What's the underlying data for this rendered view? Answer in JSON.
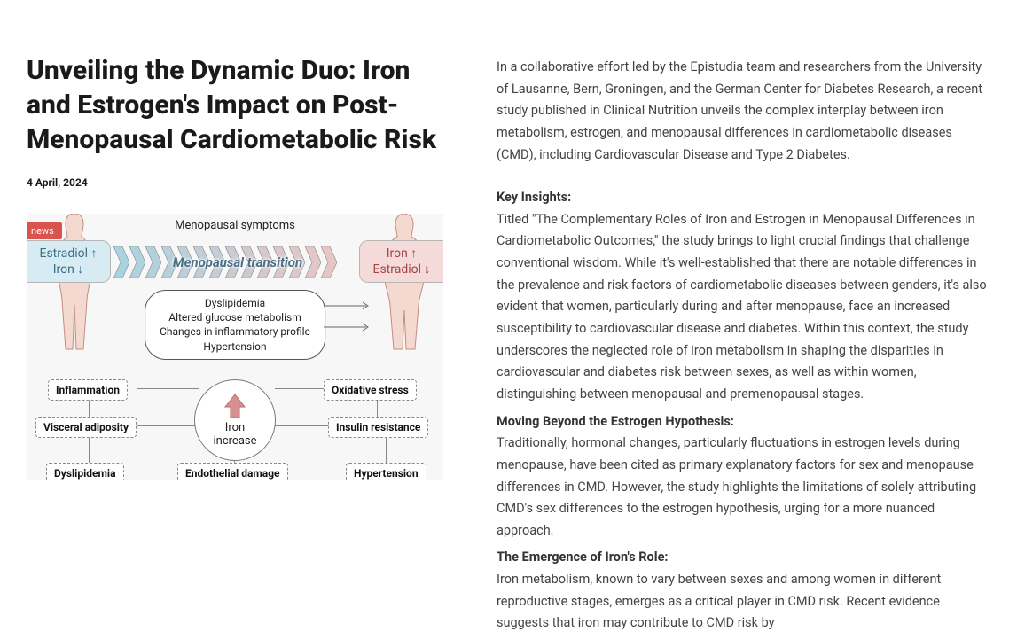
{
  "article": {
    "title": "Unveiling the Dynamic Duo: Iron and Estrogen's Impact on Post-Menopausal Cardiometabolic Risk",
    "date": "4 April, 2024",
    "badge": "news",
    "intro": "In a collaborative effort led by the Epistudia team and researchers from the University of Lausanne, Bern, Groningen, and the German Center for Diabetes Research, a recent study published in Clinical Nutrition unveils the complex interplay between iron metabolism, estrogen, and menopausal differences in cardiometabolic diseases (CMD), including Cardiovascular Disease and Type 2 Diabetes.",
    "sections": [
      {
        "heading": "Key Insights:",
        "body": "Titled \"The Complementary Roles of Iron and Estrogen in Menopausal Differences in Cardiometabolic Outcomes,\" the study brings to light crucial findings that challenge conventional wisdom. While it's well-established that there are notable differences in the prevalence and risk factors of cardiometabolic diseases between genders, it's also evident that women, particularly during and after menopause, face an increased susceptibility to cardiovascular disease and diabetes. Within this context, the study underscores the neglected role of iron metabolism in shaping the disparities in cardiovascular and diabetes risk between sexes, as well as within women, distinguishing between menopausal and premenopausal stages."
      },
      {
        "heading": "Moving Beyond the Estrogen Hypothesis:",
        "body": "Traditionally, hormonal changes, particularly fluctuations in estrogen levels during menopause, have been cited as primary explanatory factors for sex and menopause differences in CMD. However, the study highlights the limitations of solely attributing CMD's sex differences to the estrogen hypothesis, urging for a more nuanced approach."
      },
      {
        "heading": "The Emergence of Iron's Role:",
        "body": "Iron metabolism, known to vary between sexes and among women in different reproductive stages, emerges as a critical player in CMD risk. Recent evidence suggests that iron may contribute to CMD risk by"
      }
    ]
  },
  "figure": {
    "menopausal_symptoms": "Menopausal symptoms",
    "left_pill_l1": "Estradiol ↑",
    "left_pill_l2": "Iron ↓",
    "right_pill_l1": "Iron ↑",
    "right_pill_l2": "Estradiol ↓",
    "transition": "Menopausal transition",
    "mid_l1": "Dyslipidemia",
    "mid_l2": "Altered glucose metabolism",
    "mid_l3": "Changes in inflammatory profile",
    "mid_l4": "Hypertension",
    "nodes": {
      "inflammation": "Inflammation",
      "visceral": "Visceral adiposity",
      "dyslipidemia": "Dyslipidemia",
      "oxidative": "Oxidative stress",
      "insulin": "Insulin resistance",
      "hypertension": "Hypertension",
      "endothelial": "Endothelial damage"
    },
    "iron_center_l1": "Iron",
    "iron_center_l2": "increase",
    "colors": {
      "blue_pill_bg": "#d6ecf2",
      "blue_pill_text": "#3b6f87",
      "pink_pill_bg": "#f5dada",
      "pink_pill_text": "#a64545",
      "news_badge": "#d9534f",
      "chev_blue": "#a9d3e0",
      "chev_pink": "#e8c5c5",
      "iron_arrow": "#d78f8f",
      "body_fill": "#f4d9d0",
      "body_stroke": "#c48d7e"
    },
    "chevron_count": 14
  }
}
